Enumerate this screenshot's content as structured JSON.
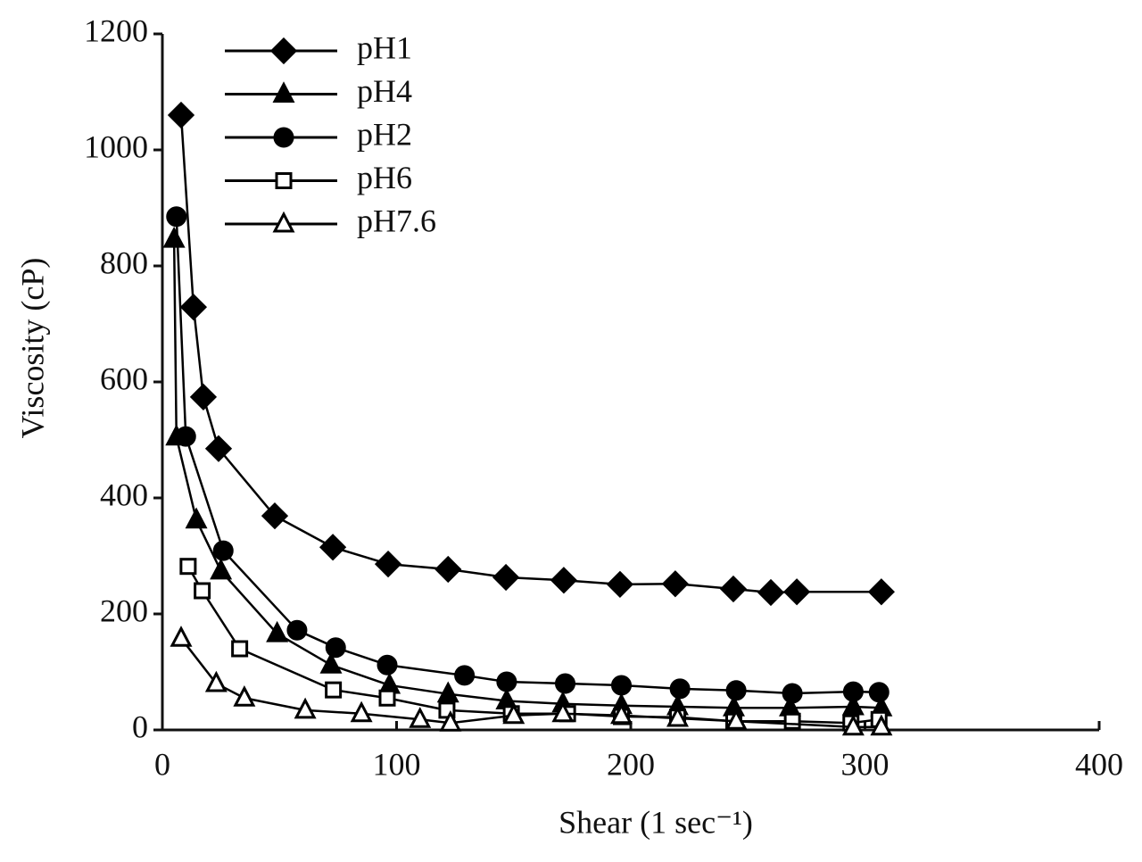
{
  "chart_data": {
    "type": "line",
    "xlabel": "Shear (1 sec⁻¹)",
    "ylabel": "Viscosity (cP)",
    "xlim": [
      0,
      400
    ],
    "xticks": [
      0,
      100,
      200,
      300,
      400
    ],
    "ylim": [
      0,
      1200
    ],
    "yticks": [
      0,
      200,
      400,
      600,
      800,
      1000,
      1200
    ],
    "grid": false,
    "legend": "upper left",
    "series": [
      {
        "name": "pH1",
        "color": "#000000",
        "marker": "diamond",
        "filled": true,
        "x": [
          8,
          13.3,
          17.5,
          24,
          48,
          72.8,
          96.4,
          122,
          146.7,
          171.4,
          195.4,
          219,
          243.8,
          259.8,
          270.9,
          307
        ],
        "values": [
          1060,
          729,
          574,
          485,
          369,
          315,
          286,
          277,
          263,
          258,
          251,
          252,
          243,
          237,
          238,
          238
        ]
      },
      {
        "name": "pH4",
        "color": "#000000",
        "marker": "triangle",
        "filled": true,
        "x": [
          5,
          6,
          14.5,
          25,
          49,
          72,
          97,
          122,
          147,
          171,
          196,
          220,
          244,
          268,
          295,
          307
        ],
        "values": [
          846,
          505,
          362,
          274,
          166,
          112,
          77,
          62,
          50,
          45,
          42,
          40,
          38,
          38,
          40,
          38
        ]
      },
      {
        "name": "pH2",
        "color": "#000000",
        "marker": "circle",
        "filled": true,
        "x": [
          6,
          10,
          26,
          57.5,
          74,
          96,
          129,
          147,
          172,
          196,
          221,
          245,
          269,
          295,
          306
        ],
        "values": [
          885,
          506,
          309,
          172,
          142,
          112,
          94,
          83,
          80,
          77,
          71,
          68,
          63,
          66,
          65
        ]
      },
      {
        "name": "pH6",
        "color": "#000000",
        "marker": "square",
        "filled": false,
        "x": [
          11,
          17,
          33,
          73,
          96,
          121.5,
          149,
          173,
          196,
          220,
          244,
          269,
          294,
          306
        ],
        "values": [
          282,
          240,
          140,
          69,
          55,
          34,
          28,
          28,
          23,
          22,
          15,
          15,
          12,
          18
        ]
      },
      {
        "name": "pH7.6",
        "color": "#000000",
        "marker": "triangle",
        "filled": false,
        "x": [
          8,
          23,
          35,
          61,
          85,
          110,
          123,
          150,
          171,
          196,
          220,
          245,
          295,
          307
        ],
        "values": [
          158,
          80,
          55,
          34,
          28,
          18,
          12,
          25,
          28,
          25,
          20,
          15,
          5,
          5
        ]
      }
    ]
  }
}
